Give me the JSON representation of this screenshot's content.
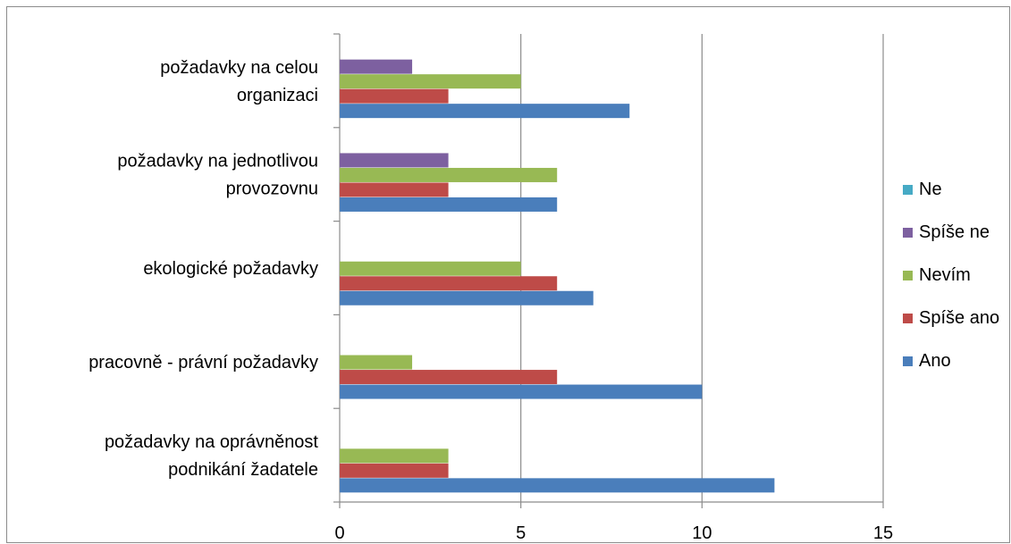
{
  "chart_data": {
    "type": "bar",
    "orientation": "horizontal",
    "categories": [
      [
        "požadavky na oprávněnost",
        "podnikání žadatele"
      ],
      [
        "pracovně - právní požadavky"
      ],
      [
        "ekologické požadavky"
      ],
      [
        "požadavky na jednotlivou",
        "provozovnu"
      ],
      [
        "požadavky na celou",
        "organizaci"
      ]
    ],
    "series": [
      {
        "name": "Ano",
        "color": "#4a7ebb",
        "values": [
          12,
          10,
          7,
          6,
          8
        ]
      },
      {
        "name": "Spíše ano",
        "color": "#be4b48",
        "values": [
          3,
          6,
          6,
          3,
          3
        ]
      },
      {
        "name": "Nevím",
        "color": "#98b954",
        "values": [
          3,
          2,
          5,
          6,
          5
        ]
      },
      {
        "name": "Spíše ne",
        "color": "#7d60a0",
        "values": [
          0,
          0,
          0,
          3,
          2
        ]
      },
      {
        "name": "Ne",
        "color": "#46aac5",
        "values": [
          0,
          0,
          0,
          0,
          0
        ]
      }
    ],
    "xlim": [
      0,
      15
    ],
    "xticks": [
      "0",
      "5",
      "10",
      "15"
    ],
    "grid": true,
    "legend": "right",
    "legend_order": [
      "Ne",
      "Spíše ne",
      "Nevím",
      "Spíše ano",
      "Ano"
    ]
  }
}
